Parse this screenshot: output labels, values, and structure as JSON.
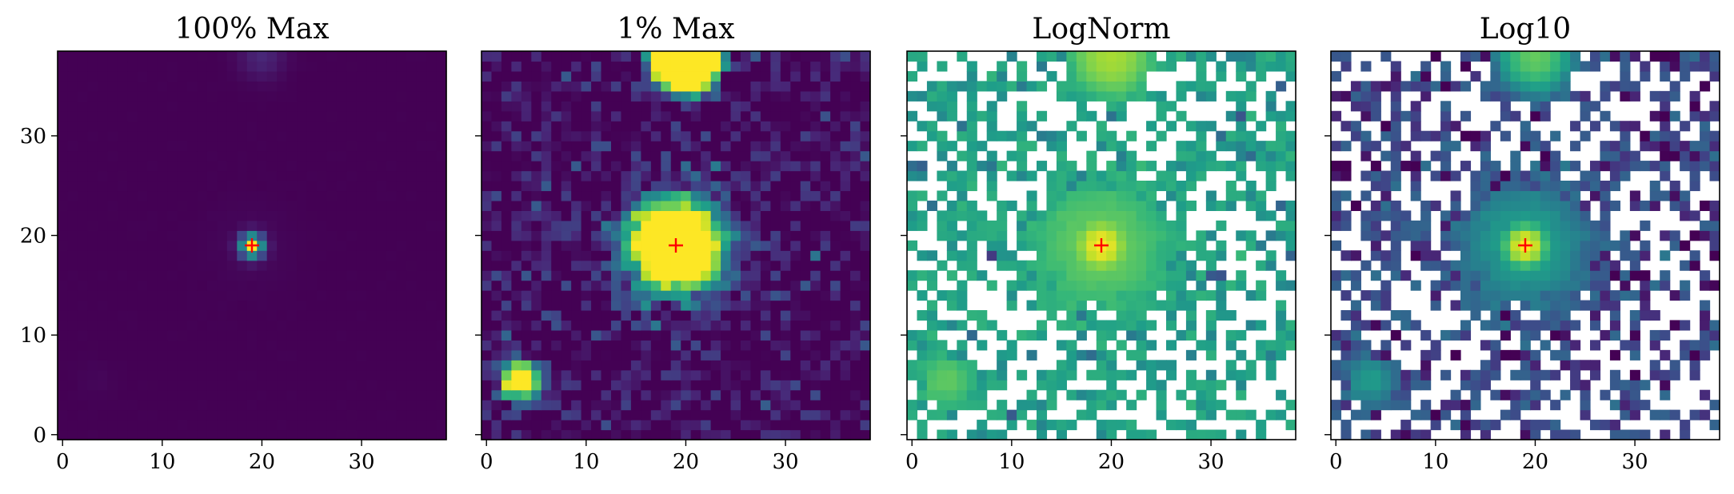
{
  "chart_data": [
    {
      "type": "heatmap",
      "title": "100% Max",
      "mode": "linear_max",
      "xlim": [
        -0.5,
        38.5
      ],
      "ylim": [
        -0.5,
        38.5
      ],
      "xticks": [
        0,
        10,
        20,
        30
      ],
      "yticks": [
        0,
        10,
        20,
        30
      ],
      "show_y_tick_labels": true,
      "marker": {
        "x": 19,
        "y": 19,
        "symbol": "+",
        "color": "#ff0000"
      },
      "colormap": "viridis"
    },
    {
      "type": "heatmap",
      "title": "1% Max",
      "mode": "linear_1pct",
      "xlim": [
        -0.5,
        38.5
      ],
      "ylim": [
        -0.5,
        38.5
      ],
      "xticks": [
        0,
        10,
        20,
        30
      ],
      "yticks": [
        0,
        10,
        20,
        30
      ],
      "show_y_tick_labels": false,
      "marker": {
        "x": 19,
        "y": 19,
        "symbol": "+",
        "color": "#ff0000"
      },
      "colormap": "viridis"
    },
    {
      "type": "heatmap",
      "title": "LogNorm",
      "mode": "lognorm",
      "xlim": [
        -0.5,
        38.5
      ],
      "ylim": [
        -0.5,
        38.5
      ],
      "xticks": [
        0,
        10,
        20,
        30
      ],
      "yticks": [
        0,
        10,
        20,
        30
      ],
      "show_y_tick_labels": false,
      "marker": {
        "x": 19,
        "y": 19,
        "symbol": "+",
        "color": "#ff0000"
      },
      "colormap": "viridis"
    },
    {
      "type": "heatmap",
      "title": "Log10",
      "mode": "log10",
      "xlim": [
        -0.5,
        38.5
      ],
      "ylim": [
        -0.5,
        38.5
      ],
      "xticks": [
        0,
        10,
        20,
        30
      ],
      "yticks": [
        0,
        10,
        20,
        30
      ],
      "show_y_tick_labels": false,
      "marker": {
        "x": 19,
        "y": 19,
        "symbol": "+",
        "color": "#ff0000"
      },
      "colormap": "viridis"
    }
  ],
  "sources": [
    {
      "x": 19,
      "y": 19,
      "amplitude": 1.0,
      "sigma": 0.8,
      "halo_amplitude": 0.02,
      "halo_sigma": 3.2
    },
    {
      "x": 20,
      "y": 38,
      "amplitude": 0.11,
      "sigma": 1.6
    },
    {
      "x": 3.5,
      "y": 5.5,
      "amplitude": 0.015,
      "sigma": 1.3
    }
  ],
  "grid": {
    "nx": 39,
    "ny": 39
  }
}
